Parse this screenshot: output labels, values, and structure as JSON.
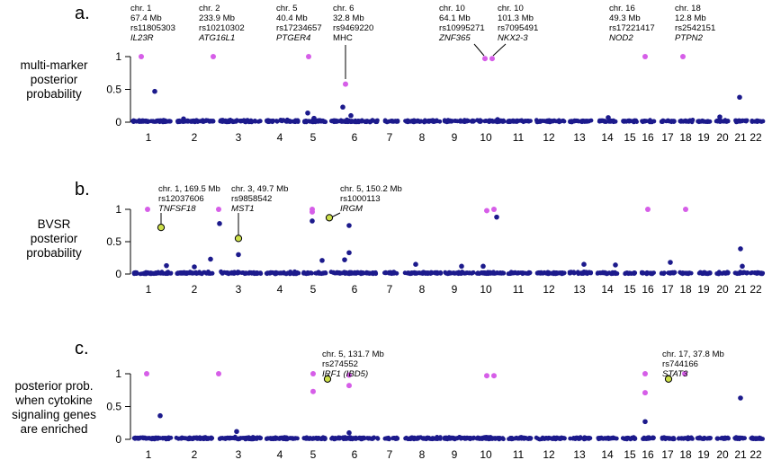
{
  "colors": {
    "background": "#ffffff",
    "snp": "#1c1a8c",
    "top_hit": "#d65ee8",
    "highlight": "#cde04a",
    "axis": "#000000"
  },
  "chart_data": [
    {
      "type": "scatter",
      "panel": "a.",
      "ylabel": [
        "multi-marker",
        "posterior",
        "probability"
      ],
      "yticks": [
        "1",
        "0.5",
        "0"
      ],
      "ylim": [
        0,
        1
      ],
      "chromosomes": [
        "1",
        "2",
        "3",
        "4",
        "5",
        "6",
        "7",
        "8",
        "9",
        "10",
        "11",
        "12",
        "13",
        "14",
        "15",
        "16",
        "17",
        "18",
        "19",
        "20",
        "21",
        "22"
      ],
      "top_hits": [
        {
          "chr": "1",
          "y": 1.0
        },
        {
          "chr": "2",
          "y": 1.0
        },
        {
          "chr": "5",
          "y": 1.0
        },
        {
          "chr": "6",
          "y": 0.58
        },
        {
          "chr": "10",
          "y": 0.97
        },
        {
          "chr": "10",
          "y": 0.97
        },
        {
          "chr": "16",
          "y": 1.0
        },
        {
          "chr": "18",
          "y": 1.0
        }
      ],
      "other_points": [
        {
          "chr": "1",
          "y": 0.47
        },
        {
          "chr": "2",
          "y": 0.05
        },
        {
          "chr": "4",
          "y": 0.03
        },
        {
          "chr": "5",
          "y": 0.14
        },
        {
          "chr": "5",
          "y": 0.06
        },
        {
          "chr": "6",
          "y": 0.23
        },
        {
          "chr": "6",
          "y": 0.1
        },
        {
          "chr": "10",
          "y": 0.04
        },
        {
          "chr": "14",
          "y": 0.07
        },
        {
          "chr": "20",
          "y": 0.08
        },
        {
          "chr": "21",
          "y": 0.38
        }
      ],
      "annotations": [
        {
          "lines": [
            "chr. 1",
            "67.4 Mb",
            "rs11805303"
          ],
          "gene": "IL23R"
        },
        {
          "lines": [
            "chr. 2",
            "233.9 Mb",
            "rs10210302"
          ],
          "gene": "ATG16L1"
        },
        {
          "lines": [
            "chr. 5",
            "40.4 Mb",
            "rs17234657"
          ],
          "gene": "PTGER4"
        },
        {
          "lines": [
            "chr. 6",
            "32.8 Mb",
            "rs9469220",
            "MHC"
          ],
          "gene": ""
        },
        {
          "lines": [
            "chr. 10",
            "64.1 Mb",
            "rs10995271"
          ],
          "gene": "ZNF365"
        },
        {
          "lines": [
            "chr. 10",
            "101.3 Mb",
            "rs7095491"
          ],
          "gene": "NKX2-3"
        },
        {
          "lines": [
            "chr. 16",
            "49.3 Mb",
            "rs17221417"
          ],
          "gene": "NOD2"
        },
        {
          "lines": [
            "chr. 18",
            "12.8 Mb",
            "rs2542151"
          ],
          "gene": "PTPN2"
        }
      ]
    },
    {
      "type": "scatter",
      "panel": "b.",
      "ylabel": [
        "BVSR",
        "posterior",
        "probability"
      ],
      "yticks": [
        "1",
        "0.5",
        "0"
      ],
      "ylim": [
        0,
        1
      ],
      "chromosomes": [
        "1",
        "2",
        "3",
        "4",
        "5",
        "6",
        "7",
        "8",
        "9",
        "10",
        "11",
        "12",
        "13",
        "14",
        "15",
        "16",
        "17",
        "18",
        "19",
        "20",
        "21",
        "22"
      ],
      "top_hits": [
        {
          "chr": "1",
          "y": 1.0
        },
        {
          "chr": "2",
          "y": 1.0
        },
        {
          "chr": "5",
          "y": 1.0
        },
        {
          "chr": "5",
          "y": 0.96
        },
        {
          "chr": "10",
          "y": 0.98
        },
        {
          "chr": "10",
          "y": 1.0
        },
        {
          "chr": "16",
          "y": 1.0
        },
        {
          "chr": "18",
          "y": 1.0
        }
      ],
      "highlighted": [
        {
          "chr": "1",
          "y": 0.72
        },
        {
          "chr": "3",
          "y": 0.55
        },
        {
          "chr": "5",
          "y": 0.87
        }
      ],
      "other_points": [
        {
          "chr": "1",
          "y": 0.13
        },
        {
          "chr": "2",
          "y": 0.11
        },
        {
          "chr": "2",
          "y": 0.78
        },
        {
          "chr": "2",
          "y": 0.23
        },
        {
          "chr": "3",
          "y": 0.3
        },
        {
          "chr": "5",
          "y": 0.82
        },
        {
          "chr": "5",
          "y": 0.21
        },
        {
          "chr": "6",
          "y": 0.75
        },
        {
          "chr": "6",
          "y": 0.33
        },
        {
          "chr": "6",
          "y": 0.22
        },
        {
          "chr": "8",
          "y": 0.15
        },
        {
          "chr": "9",
          "y": 0.12
        },
        {
          "chr": "10",
          "y": 0.88
        },
        {
          "chr": "10",
          "y": 0.12
        },
        {
          "chr": "13",
          "y": 0.15
        },
        {
          "chr": "14",
          "y": 0.14
        },
        {
          "chr": "17",
          "y": 0.18
        },
        {
          "chr": "21",
          "y": 0.39
        },
        {
          "chr": "21",
          "y": 0.12
        }
      ],
      "annotations": [
        {
          "lines": [
            "chr. 1, 169.5 Mb",
            "rs12037606"
          ],
          "gene": "TNFSF18"
        },
        {
          "lines": [
            "chr. 3, 49.7 Mb",
            "rs9858542"
          ],
          "gene": "MST1"
        },
        {
          "lines": [
            "chr. 5, 150.2 Mb",
            "rs1000113"
          ],
          "gene": "IRGM"
        }
      ]
    },
    {
      "type": "scatter",
      "panel": "c.",
      "ylabel": [
        "posterior prob.",
        "when cytokine",
        "signaling genes",
        "are enriched"
      ],
      "yticks": [
        "1",
        "0.5",
        "0"
      ],
      "ylim": [
        0,
        1
      ],
      "chromosomes": [
        "1",
        "2",
        "3",
        "4",
        "5",
        "6",
        "7",
        "8",
        "9",
        "10",
        "11",
        "12",
        "13",
        "14",
        "15",
        "16",
        "17",
        "18",
        "19",
        "20",
        "21",
        "22"
      ],
      "top_hits": [
        {
          "chr": "1",
          "y": 1.0
        },
        {
          "chr": "2",
          "y": 1.0
        },
        {
          "chr": "5",
          "y": 1.0
        },
        {
          "chr": "5",
          "y": 0.73
        },
        {
          "chr": "6",
          "y": 0.98
        },
        {
          "chr": "6",
          "y": 0.82
        },
        {
          "chr": "10",
          "y": 0.97
        },
        {
          "chr": "10",
          "y": 0.97
        },
        {
          "chr": "16",
          "y": 1.0
        },
        {
          "chr": "16",
          "y": 0.71
        },
        {
          "chr": "18",
          "y": 1.0
        }
      ],
      "highlighted": [
        {
          "chr": "5",
          "y": 0.92
        },
        {
          "chr": "17",
          "y": 0.92
        }
      ],
      "other_points": [
        {
          "chr": "1",
          "y": 0.36
        },
        {
          "chr": "3",
          "y": 0.12
        },
        {
          "chr": "6",
          "y": 0.1
        },
        {
          "chr": "16",
          "y": 0.27
        },
        {
          "chr": "21",
          "y": 0.63
        }
      ],
      "annotations": [
        {
          "lines": [
            "chr. 5, 131.7 Mb",
            "rs274552"
          ],
          "gene": "IRF1 (IBD5)"
        },
        {
          "lines": [
            "chr. 17, 37.8 Mb",
            "rs744166"
          ],
          "gene": "STAT3"
        }
      ]
    }
  ]
}
